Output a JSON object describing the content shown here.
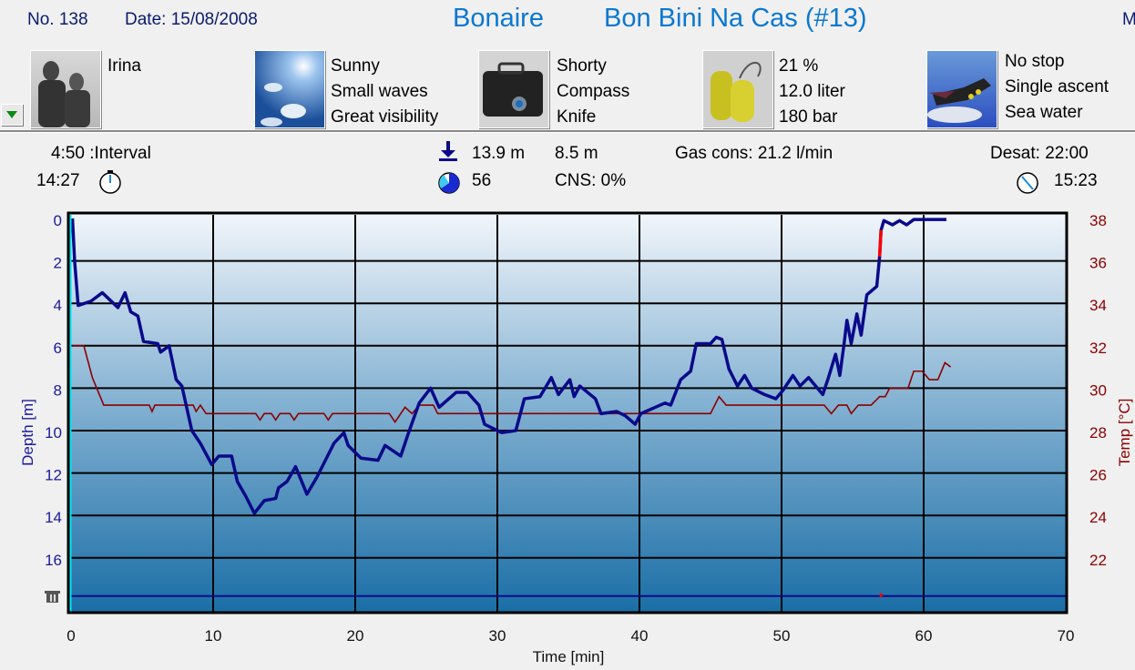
{
  "header": {
    "dive_no": "No. 138",
    "date": "Date: 15/08/2008",
    "location": "Bonaire",
    "site": "Bon Bini Na Cas (#13)",
    "truncated_right": "M"
  },
  "panels": [
    {
      "icon": "buddy-photo",
      "lines": [
        "Irina"
      ]
    },
    {
      "icon": "weather-sky-photo",
      "lines": [
        "Sunny",
        "Small waves",
        "Great visibility"
      ]
    },
    {
      "icon": "equipment-bag-photo",
      "lines": [
        "Shorty",
        "Compass",
        "Knife"
      ]
    },
    {
      "icon": "gas-tanks-photo",
      "lines": [
        "21 %",
        "12.0 liter",
        "180 bar"
      ]
    },
    {
      "icon": "diver-photo",
      "lines": [
        "No stop",
        "Single ascent",
        "Sea water"
      ]
    }
  ],
  "stats": {
    "interval": "4:50 :Interval",
    "entry_time": "14:27",
    "max_depth": "13.9 m",
    "avg_depth": "8.5 m",
    "duration": "56",
    "cns": "CNS:  0%",
    "gas_cons": "Gas cons: 21.2 l/min",
    "desat": "Desat: 22:00",
    "exit_time": "15:23"
  },
  "colors": {
    "title": "#0a78d0",
    "depth_line": "#0a0a8a",
    "temp_line": "#8b0000",
    "ascent_warning": "#ff0000",
    "cursor": "#00e5f0"
  },
  "chart_data": {
    "type": "line",
    "xlabel": "Time [min]",
    "ylabel": "Depth [m]",
    "y2label": "Temp [°C]",
    "xlim": [
      0,
      70
    ],
    "ylim": [
      0,
      18.6
    ],
    "y_inverted": true,
    "y2lim": [
      38,
      19.4
    ],
    "x_ticks": [
      0,
      10,
      20,
      30,
      40,
      50,
      60,
      70
    ],
    "y_ticks": [
      0,
      2,
      4,
      6,
      8,
      10,
      12,
      14,
      16
    ],
    "y2_ticks": [
      38,
      36,
      34,
      32,
      30,
      28,
      26,
      24,
      22
    ],
    "grid": true,
    "bottom_reference_depth": 17.8,
    "ascent_warning_marker_time": 57.0,
    "series": [
      {
        "name": "Depth",
        "axis": "left",
        "x": [
          0.1,
          0.25,
          0.5,
          1.4,
          2.2,
          3.3,
          3.8,
          4.2,
          4.7,
          5.1,
          6.1,
          6.3,
          6.9,
          7.4,
          7.8,
          8.5,
          9.1,
          9.9,
          10.4,
          11.3,
          11.7,
          12.3,
          12.9,
          13.6,
          14.4,
          14.6,
          15.2,
          15.8,
          16.6,
          17.3,
          17.9,
          18.5,
          19.2,
          19.5,
          20.4,
          21.6,
          22.1,
          23.2,
          23.7,
          24.5,
          25.3,
          25.9,
          27.1,
          27.9,
          28.7,
          29.1,
          30.3,
          31.3,
          31.9,
          33.0,
          33.8,
          34.3,
          35.1,
          35.4,
          35.8,
          36.9,
          37.3,
          38.4,
          39.0,
          39.7,
          40.1,
          41.8,
          42.2,
          42.9,
          43.6,
          44.0,
          45.0,
          45.4,
          45.8,
          46.3,
          46.6,
          46.9,
          47.4,
          47.9,
          48.8,
          49.6,
          50.1,
          50.8,
          51.3,
          51.9,
          52.9,
          53.3,
          53.8,
          54.1,
          54.4,
          54.6,
          54.9,
          55.3,
          55.6,
          56.0,
          56.7,
          56.9,
          57.0,
          57.2,
          57.8,
          58.3,
          58.8,
          59.3,
          61.6
        ],
        "y": [
          0,
          2.0,
          4.1,
          3.9,
          3.5,
          4.2,
          3.5,
          4.4,
          4.6,
          5.8,
          5.9,
          6.3,
          6.0,
          7.6,
          7.9,
          10.0,
          10.6,
          11.6,
          11.2,
          11.2,
          12.4,
          13.1,
          13.9,
          13.3,
          13.2,
          12.7,
          12.4,
          11.7,
          13.0,
          12.2,
          11.4,
          10.6,
          10.1,
          10.7,
          11.3,
          11.4,
          10.7,
          11.2,
          10.2,
          8.7,
          8.0,
          8.9,
          8.2,
          8.2,
          8.8,
          9.7,
          10.1,
          10.0,
          8.5,
          8.4,
          7.5,
          8.3,
          7.6,
          8.4,
          7.9,
          8.5,
          9.2,
          9.1,
          9.3,
          9.7,
          9.2,
          8.7,
          8.8,
          7.6,
          7.2,
          5.9,
          5.9,
          5.6,
          5.7,
          7.1,
          7.5,
          7.9,
          7.4,
          8.0,
          8.3,
          8.5,
          8.1,
          7.4,
          7.9,
          7.5,
          8.3,
          7.5,
          6.4,
          7.4,
          5.9,
          4.8,
          5.9,
          4.5,
          5.5,
          3.6,
          3.2,
          1.8,
          0.55,
          0.1,
          0.3,
          0.1,
          0.3,
          0.05,
          0.05
        ]
      },
      {
        "name": "Temp",
        "axis": "right",
        "x": [
          0.1,
          0.9,
          1.5,
          2.3,
          5.5,
          5.7,
          5.9,
          8.6,
          8.8,
          9.1,
          9.5,
          13.0,
          13.3,
          13.6,
          14.1,
          14.4,
          14.7,
          15.4,
          15.7,
          16.0,
          17.8,
          18.1,
          18.4,
          22.4,
          22.8,
          23.5,
          24.0,
          24.5,
          25.5,
          25.8,
          45.0,
          45.6,
          46.1,
          53.0,
          53.5,
          54.0,
          54.6,
          54.9,
          55.4,
          56.3,
          56.9,
          57.3,
          57.6,
          58.9,
          59.3,
          59.9,
          60.4,
          61.0,
          61.5,
          61.9
        ],
        "y": [
          32,
          32,
          30.5,
          29.2,
          29.2,
          28.9,
          29.2,
          29.2,
          28.9,
          29.2,
          28.8,
          28.8,
          28.5,
          28.8,
          28.8,
          28.5,
          28.8,
          28.8,
          28.5,
          28.8,
          28.8,
          28.5,
          28.8,
          28.8,
          28.4,
          29.1,
          28.8,
          29.2,
          29.2,
          28.8,
          28.8,
          29.6,
          29.2,
          29.2,
          28.8,
          29.2,
          29.2,
          28.8,
          29.2,
          29.2,
          29.6,
          29.6,
          30.0,
          30.0,
          30.8,
          30.8,
          30.4,
          30.4,
          31.2,
          31.0
        ]
      }
    ]
  }
}
